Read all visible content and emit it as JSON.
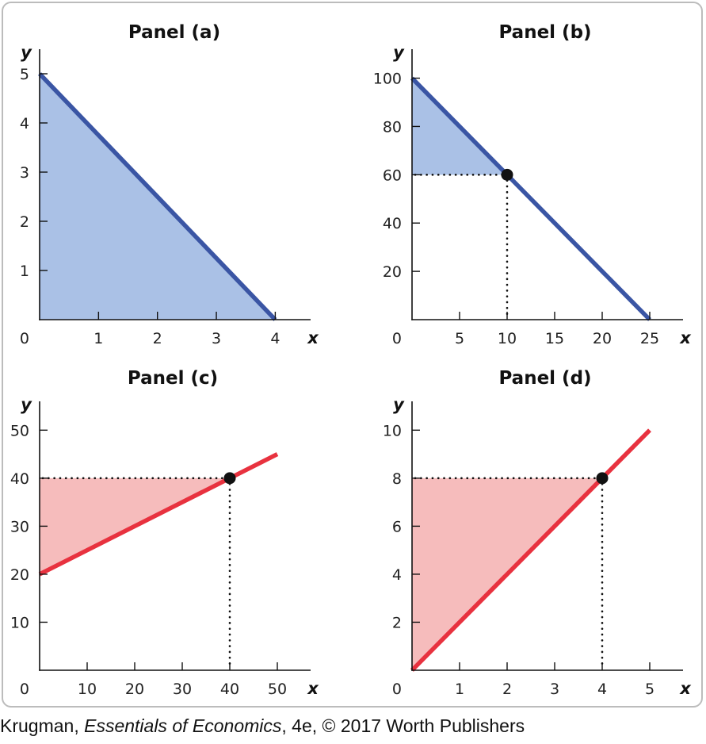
{
  "chart_data": [
    {
      "type": "line",
      "title": "Panel (a)",
      "xlabel": "x",
      "ylabel": "y",
      "origin_label": "0",
      "xlim": [
        0,
        4.6
      ],
      "ylim": [
        0,
        5.5
      ],
      "xticks": [
        1,
        2,
        3,
        4
      ],
      "yticks": [
        1,
        2,
        3,
        4,
        5
      ],
      "series": [
        {
          "x": [
            0,
            4
          ],
          "y": [
            5,
            0
          ],
          "color": "#3a55a4"
        }
      ],
      "shaded_area": {
        "polygon": [
          [
            0,
            0
          ],
          [
            0,
            5
          ],
          [
            4,
            0
          ]
        ],
        "color": "#aac1e6"
      },
      "point": null
    },
    {
      "type": "line",
      "title": "Panel (b)",
      "xlabel": "x",
      "ylabel": "y",
      "origin_label": "0",
      "xlim": [
        0,
        28.5
      ],
      "ylim": [
        0,
        112
      ],
      "xticks": [
        5,
        10,
        15,
        20,
        25
      ],
      "yticks": [
        20,
        40,
        60,
        80,
        100
      ],
      "series": [
        {
          "x": [
            0,
            25
          ],
          "y": [
            100,
            0
          ],
          "color": "#3a55a4"
        }
      ],
      "shaded_area": {
        "polygon": [
          [
            0,
            60
          ],
          [
            0,
            100
          ],
          [
            10,
            60
          ]
        ],
        "color": "#aac1e6"
      },
      "point": {
        "x": 10,
        "y": 60
      }
    },
    {
      "type": "line",
      "title": "Panel (c)",
      "xlabel": "x",
      "ylabel": "y",
      "origin_label": "0",
      "xlim": [
        0,
        57
      ],
      "ylim": [
        0,
        56
      ],
      "xticks": [
        10,
        20,
        30,
        40,
        50
      ],
      "yticks": [
        10,
        20,
        30,
        40,
        50
      ],
      "series": [
        {
          "x": [
            0,
            50
          ],
          "y": [
            20,
            45
          ],
          "color": "#e8323f"
        }
      ],
      "shaded_area": {
        "polygon": [
          [
            0,
            20
          ],
          [
            0,
            40
          ],
          [
            40,
            40
          ]
        ],
        "color": "#f6bcbc"
      },
      "point": {
        "x": 40,
        "y": 40
      }
    },
    {
      "type": "line",
      "title": "Panel (d)",
      "xlabel": "x",
      "ylabel": "y",
      "origin_label": "0",
      "xlim": [
        0,
        5.7
      ],
      "ylim": [
        0,
        11.2
      ],
      "xticks": [
        1,
        2,
        3,
        4,
        5
      ],
      "yticks": [
        2,
        4,
        6,
        8,
        10
      ],
      "series": [
        {
          "x": [
            0,
            5
          ],
          "y": [
            0,
            10
          ],
          "color": "#e8323f"
        }
      ],
      "shaded_area": {
        "polygon": [
          [
            0,
            0
          ],
          [
            0,
            8
          ],
          [
            4,
            8
          ]
        ],
        "color": "#f6bcbc"
      },
      "point": {
        "x": 4,
        "y": 8
      }
    }
  ],
  "credit": {
    "author": "Krugman,",
    "book": "Essentials of Economics",
    "rest": ", 4e, © 2017 Worth Publishers"
  }
}
